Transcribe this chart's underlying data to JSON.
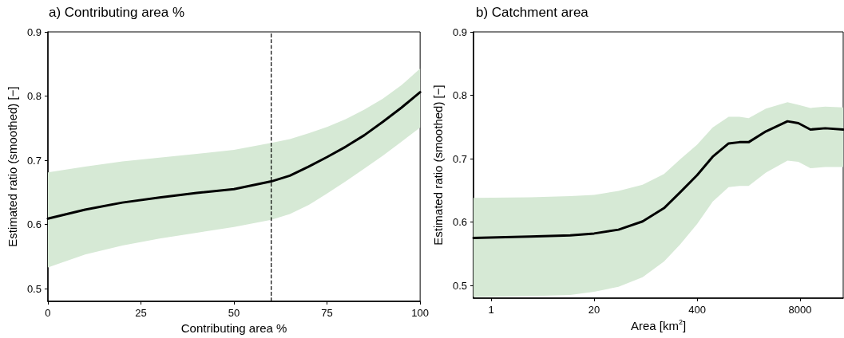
{
  "chart_data": [
    {
      "type": "line",
      "title": "a) Contributing area %",
      "xlabel": "Contributing area %",
      "ylabel": "Estimated ratio (smoothed) [−]",
      "marker": "none",
      "xlim": [
        0,
        100
      ],
      "xticks": [
        0,
        25,
        50,
        75,
        100
      ],
      "ylim": [
        0.48,
        0.9
      ],
      "yticks": [
        0.5,
        0.6,
        0.7,
        0.8,
        0.9
      ],
      "x": [
        0,
        10,
        20,
        30,
        40,
        50,
        60,
        65,
        70,
        75,
        80,
        85,
        90,
        95,
        100
      ],
      "series": [
        {
          "color": "#000000",
          "values": [
            0.609,
            0.623,
            0.634,
            0.642,
            0.649,
            0.655,
            0.667,
            0.676,
            0.69,
            0.705,
            0.721,
            0.739,
            0.76,
            0.782,
            0.806
          ],
          "lower": [
            0.533,
            0.553,
            0.567,
            0.578,
            0.587,
            0.596,
            0.607,
            0.616,
            0.63,
            0.648,
            0.667,
            0.687,
            0.707,
            0.729,
            0.751
          ],
          "upper": [
            0.681,
            0.69,
            0.698,
            0.704,
            0.71,
            0.716,
            0.727,
            0.733,
            0.742,
            0.752,
            0.764,
            0.779,
            0.796,
            0.817,
            0.843
          ]
        }
      ],
      "ref_lines": [
        {
          "axis": "x",
          "value": 60,
          "color": "#000000",
          "line_style": "dashed"
        }
      ]
    },
    {
      "type": "line",
      "title": "b) Catchment area",
      "xlabel": "Area [km$^{2}$]",
      "ylabel": "Estimated ratio (smoothed) [−]",
      "marker": "none",
      "log": "x",
      "xlim": [
        0.6,
        28000
      ],
      "xticks": [
        1,
        20,
        400,
        8000
      ],
      "ylim": [
        0.48,
        0.9
      ],
      "yticks": [
        0.5,
        0.6,
        0.7,
        0.8,
        0.9
      ],
      "x": [
        0.6,
        3.1,
        10,
        20,
        40.7,
        82,
        153,
        245,
        400,
        628,
        1000,
        1370,
        1790,
        2960,
        5540,
        7600,
        10800,
        16600,
        28000
      ],
      "series": [
        {
          "color": "#000000",
          "values": [
            0.575,
            0.577,
            0.579,
            0.582,
            0.588,
            0.601,
            0.622,
            0.647,
            0.674,
            0.703,
            0.724,
            0.726,
            0.726,
            0.743,
            0.759,
            0.756,
            0.746,
            0.748,
            0.746
          ],
          "lower": [
            0.482,
            0.483,
            0.485,
            0.49,
            0.498,
            0.513,
            0.538,
            0.565,
            0.597,
            0.632,
            0.655,
            0.657,
            0.657,
            0.678,
            0.697,
            0.695,
            0.685,
            0.687,
            0.687
          ],
          "upper": [
            0.638,
            0.639,
            0.641,
            0.643,
            0.649,
            0.659,
            0.676,
            0.699,
            0.722,
            0.749,
            0.766,
            0.766,
            0.764,
            0.779,
            0.789,
            0.785,
            0.78,
            0.782,
            0.781
          ]
        }
      ]
    }
  ]
}
